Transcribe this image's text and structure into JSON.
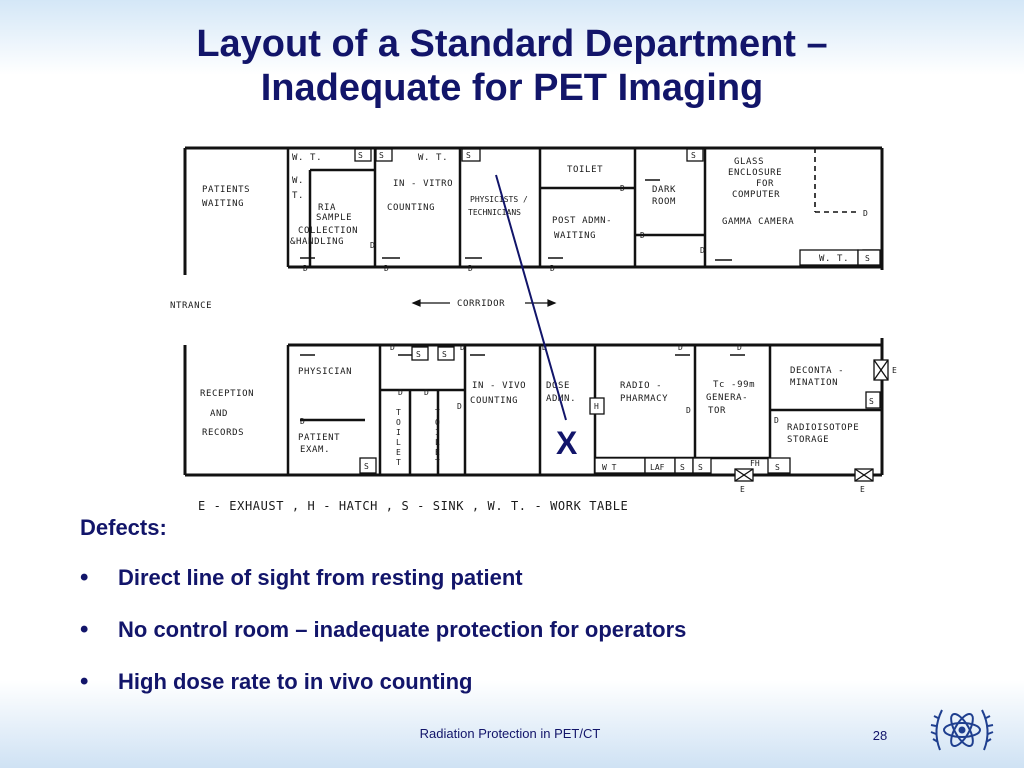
{
  "slide": {
    "title_line1": "Layout of a Standard Department –",
    "title_line2": "Inadequate for PET Imaging",
    "defects_heading": "Defects:",
    "defects": [
      "Direct line of sight from resting patient",
      "No control room – inadequate protection for operators",
      "High dose rate to in vivo counting"
    ],
    "footer": "Radiation Protection in PET/CT",
    "page_number": "28"
  },
  "plan": {
    "rooms": {
      "patients_waiting_1": "PATIENTS",
      "patients_waiting_2": "WAITING",
      "wt": "W. T.",
      "wt_vert_1": "W.",
      "wt_vert_2": "T.",
      "ria_1": "RIA",
      "ria_2": "SAMPLE",
      "ria_3": "COLLECTION",
      "ria_4": "&HANDLING",
      "invitro_1": "IN - VITRO",
      "invitro_2": "COUNTING",
      "physicists_1": "PHYSICISTS /",
      "physicists_2": "TECHNICIANS",
      "toilet": "TOILET",
      "post_admin_1": "POST ADMN-",
      "post_admin_2": "WAITING",
      "dark_room_1": "DARK",
      "dark_room_2": "ROOM",
      "glass_1": "GLASS",
      "glass_2": "ENCLOSURE",
      "glass_3": "FOR",
      "glass_4": "COMPUTER",
      "gamma_camera": "GAMMA CAMERA",
      "entrance": "NTRANCE",
      "corridor": "CORRIDOR",
      "reception_1": "RECEPTION",
      "reception_2": "AND",
      "reception_3": "RECORDS",
      "physician": "PHYSICIAN",
      "patient_exam_1": "PATIENT",
      "patient_exam_2": "EXAM.",
      "invivo_1": "IN - VIVO",
      "invivo_2": "COUNTING",
      "dose_1": "DOSE",
      "dose_2": "ADMN.",
      "radiopharmacy_1": "RADIO -",
      "radiopharmacy_2": "PHARMACY",
      "tc_1": "Tc -99m",
      "tc_2": "GENERA-",
      "tc_3": "TOR",
      "decon_1": "DECONTA -",
      "decon_2": "MINATION",
      "radioisotope_1": "RADIOISOTOPE",
      "radioisotope_2": "STORAGE",
      "wt_lower": "W T",
      "laf": "LAF",
      "fh": "FH",
      "hatch": "H",
      "sink": "S",
      "door": "D",
      "exhaust": "E",
      "toilet_vertical": [
        "T",
        "O",
        "I",
        "L",
        "E",
        "T"
      ]
    },
    "legend": "E - EXHAUST  ,  H - HATCH  ,  S - SINK  ,  W. T. - WORK TABLE",
    "marker": "X"
  },
  "colors": {
    "title": "#12156a",
    "line_of_sight": "#12156a",
    "plan_ink": "#111111"
  }
}
